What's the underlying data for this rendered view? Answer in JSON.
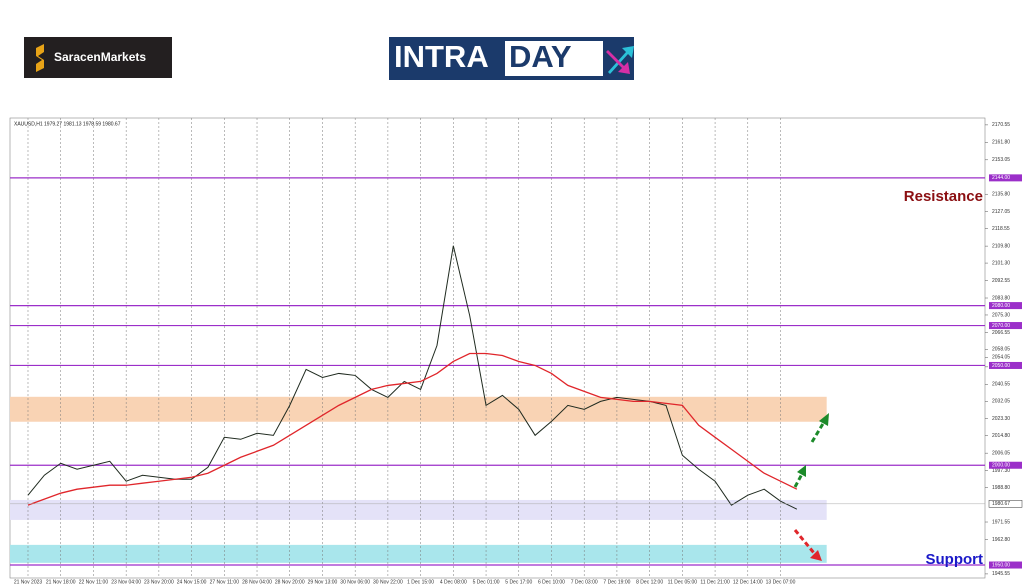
{
  "brand": "SaracenMarkets",
  "banner": {
    "left": "INTRA",
    "right": "DAY"
  },
  "chart_data": {
    "type": "line",
    "title": "XAUUSD,H1  1979.27 1981.13 1978.59 1980.67",
    "x": [
      0,
      0.5,
      1,
      1.5,
      2,
      2.5,
      3,
      3.5,
      4,
      4.5,
      5,
      5.5,
      6,
      6.5,
      7,
      7.5,
      8,
      8.5,
      9,
      9.5,
      10,
      10.5,
      11,
      11.5,
      12,
      12.5,
      13,
      13.5,
      14,
      14.5,
      15,
      15.5,
      16,
      16.5,
      17,
      17.5,
      18,
      18.5,
      19,
      19.5,
      20,
      20.5,
      21,
      21.5,
      22,
      22.5,
      23,
      23.5
    ],
    "series": [
      {
        "name": "XAUUSD",
        "color": "#1f2a1f",
        "values": [
          1985,
          1995,
          2001,
          1998,
          2000,
          2002,
          1992,
          1995,
          1994,
          1993,
          1993,
          1999,
          2014,
          2013,
          2016,
          2015,
          2030,
          2048,
          2044,
          2046,
          2045,
          2038,
          2034,
          2042,
          2038,
          2060,
          2110,
          2075,
          2030,
          2035,
          2028,
          2015,
          2022,
          2030,
          2028,
          2032,
          2034,
          2033,
          2032,
          2030,
          2005,
          1998,
          1992,
          1980,
          1985,
          1988,
          1982,
          1978
        ]
      },
      {
        "name": "MA",
        "color": "#e0262b",
        "values": [
          1980,
          1983,
          1986,
          1988,
          1989,
          1990,
          1990,
          1991,
          1992,
          1993,
          1994,
          1996,
          2000,
          2004,
          2007,
          2010,
          2015,
          2020,
          2025,
          2030,
          2034,
          2038,
          2040,
          2041,
          2042,
          2046,
          2052,
          2056,
          2056,
          2055,
          2052,
          2050,
          2046,
          2040,
          2037,
          2034,
          2033,
          2032,
          2032,
          2031,
          2030,
          2020,
          2014,
          2008,
          2002,
          1996,
          1992,
          1988
        ]
      }
    ],
    "xlim": [
      -0.55,
      29.25
    ],
    "xticks": [
      {
        "value": 0,
        "label": "21 Nov 2023"
      },
      {
        "value": 1,
        "label": "21 Nov 18:00"
      },
      {
        "value": 2,
        "label": "22 Nov 11:00"
      },
      {
        "value": 3,
        "label": "23 Nov 04:00"
      },
      {
        "value": 4,
        "label": "23 Nov 20:00"
      },
      {
        "value": 5,
        "label": "24 Nov 15:00"
      },
      {
        "value": 6,
        "label": "27 Nov 11:00"
      },
      {
        "value": 7,
        "label": "28 Nov 04:00"
      },
      {
        "value": 8,
        "label": "28 Nov 20:00"
      },
      {
        "value": 9,
        "label": "29 Nov 13:00"
      },
      {
        "value": 10,
        "label": "30 Nov 06:00"
      },
      {
        "value": 11,
        "label": "30 Nov 22:00"
      },
      {
        "value": 12,
        "label": "1 Dec 15:00"
      },
      {
        "value": 13,
        "label": "4 Dec 08:00"
      },
      {
        "value": 14,
        "label": "5 Dec 01:00"
      },
      {
        "value": 15,
        "label": "5 Dec 17:00"
      },
      {
        "value": 16,
        "label": "6 Dec 10:00"
      },
      {
        "value": 17,
        "label": "7 Dec 03:00"
      },
      {
        "value": 18,
        "label": "7 Dec 19:00"
      },
      {
        "value": 19,
        "label": "8 Dec 12:00"
      },
      {
        "value": 20,
        "label": "11 Dec 05:00"
      },
      {
        "value": 21,
        "label": "11 Dec 21:00"
      },
      {
        "value": 22,
        "label": "12 Dec 14:00"
      },
      {
        "value": 23,
        "label": "13 Dec 07:00"
      }
    ],
    "ylim": [
      1943.5,
      2174
    ],
    "yticks": [
      2170.55,
      {
        "value": 2161.8,
        "label": "2161.80"
      },
      2153.05,
      {
        "value": 2135.8,
        "label": "2135.80"
      },
      2127.05,
      2118.55,
      {
        "value": 2109.8,
        "label": "2109.80"
      },
      {
        "value": 2101.3,
        "label": "2101.30"
      },
      2092.55,
      {
        "value": 2083.8,
        "label": "2083.80"
      },
      {
        "value": 2075.3,
        "label": "2075.30"
      },
      2066.55,
      2058.05,
      {
        "value": 2049.3,
        "label": "2049.30"
      },
      2040.55,
      2032.05,
      {
        "value": 2023.3,
        "label": "2023.30"
      },
      {
        "value": 2014.8,
        "label": "2014.80"
      },
      2006.05,
      {
        "value": 1997.3,
        "label": "1997.30"
      },
      {
        "value": 1988.8,
        "label": "1988.80"
      },
      1971.55,
      {
        "value": 1962.8,
        "label": "1962.80"
      },
      2054.05,
      1945.55
    ],
    "levels": [
      {
        "value": 2144,
        "label": "2144.00"
      },
      {
        "value": 2080,
        "label": "2080.00"
      },
      {
        "value": 2070,
        "label": "2070.00"
      },
      {
        "value": 2050,
        "label": "2050.00"
      },
      {
        "value": 2000,
        "label": "2000.00"
      },
      {
        "value": 1950,
        "label": "1950.00"
      }
    ],
    "level_color": "#9b2fc9",
    "zones": [
      {
        "range": [
          2021.8,
          2034.3
        ],
        "color": "#f9d3b4"
      },
      {
        "range": [
          1972.6,
          1982.6
        ],
        "color": "#e4e2f8"
      },
      {
        "range": [
          1951.1,
          1960.1
        ],
        "color": "#a9e6ec"
      }
    ],
    "last_price": 1980.67,
    "annotations": [
      {
        "text": "Resistance",
        "color": "#8b0f12",
        "value": 2135.8
      },
      {
        "text": "Support",
        "color": "#1a18c8",
        "value": 1954.05
      }
    ]
  }
}
